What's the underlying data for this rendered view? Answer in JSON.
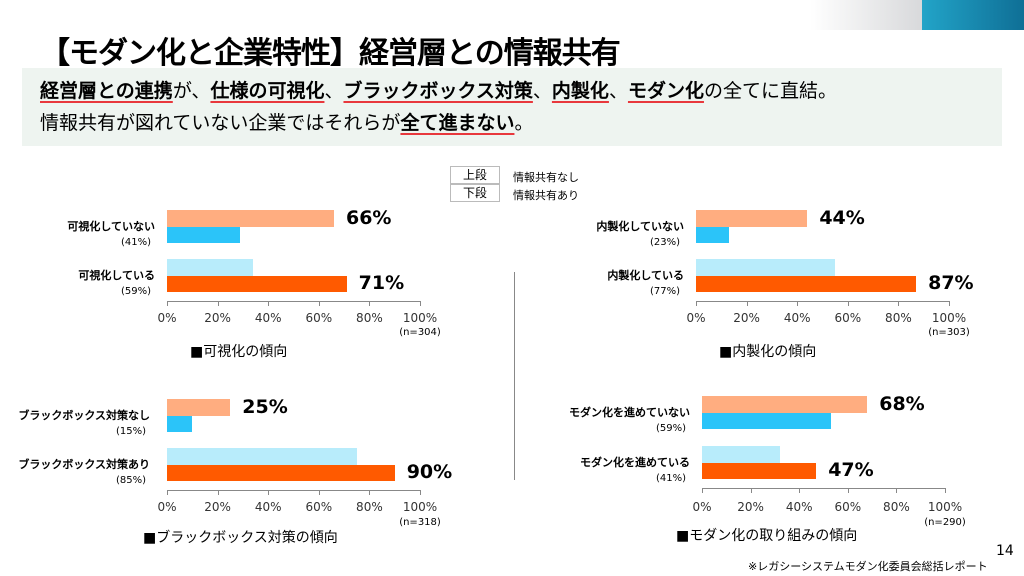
{
  "title": "【モダン化と企業特性】経営層との情報共有",
  "summary": {
    "line1": [
      {
        "t": "経営層との連携",
        "u": true
      },
      {
        "t": "が、",
        "u": false
      },
      {
        "t": "仕様の可視化",
        "u": true
      },
      {
        "t": "、",
        "u": false
      },
      {
        "t": "ブラックボックス対策",
        "u": true
      },
      {
        "t": "、",
        "u": false
      },
      {
        "t": "内製化",
        "u": true
      },
      {
        "t": "、",
        "u": false
      },
      {
        "t": "モダン化",
        "u": true
      },
      {
        "t": "の全てに直結。",
        "u": false
      }
    ],
    "line2": [
      {
        "t": "情報共有が図れていない企業ではそれらが",
        "u": false
      },
      {
        "t": "全て進まない",
        "u": true
      },
      {
        "t": "。",
        "u": false
      }
    ]
  },
  "legend": [
    {
      "key": "上段",
      "label": "情報共有なし"
    },
    {
      "key": "下段",
      "label": "情報共有あり"
    }
  ],
  "colors": {
    "top_highlight": "#ffad80",
    "top_other": "#b8ecfb",
    "bottom_other": "#2bc4f9",
    "bottom_highlight": "#ff5a00"
  },
  "chart_data": [
    {
      "type": "bar",
      "orientation": "horizontal",
      "caption": "■可視化の傾向",
      "n": "(n=304)",
      "xlim": [
        0,
        100
      ],
      "ticks": [
        "0%",
        "20%",
        "40%",
        "60%",
        "80%",
        "100%"
      ],
      "categories": [
        {
          "label": "可視化していない",
          "share": "(41%)"
        },
        {
          "label": "可視化している",
          "share": "(59%)"
        }
      ],
      "series": [
        {
          "name": "情報共有なし",
          "values": [
            66,
            34
          ]
        },
        {
          "name": "情報共有あり",
          "values": [
            29,
            71
          ]
        }
      ],
      "data_labels": [
        "66%",
        "71%"
      ]
    },
    {
      "type": "bar",
      "orientation": "horizontal",
      "caption": "■内製化の傾向",
      "n": "(n=303)",
      "xlim": [
        0,
        100
      ],
      "ticks": [
        "0%",
        "20%",
        "40%",
        "60%",
        "80%",
        "100%"
      ],
      "categories": [
        {
          "label": "内製化していない",
          "share": "(23%)"
        },
        {
          "label": "内製化している",
          "share": "(77%)"
        }
      ],
      "series": [
        {
          "name": "情報共有なし",
          "values": [
            44,
            55
          ]
        },
        {
          "name": "情報共有あり",
          "values": [
            13,
            87
          ]
        }
      ],
      "data_labels": [
        "44%",
        "87%"
      ]
    },
    {
      "type": "bar",
      "orientation": "horizontal",
      "caption": "■ブラックボックス対策の傾向",
      "n": "(n=318)",
      "xlim": [
        0,
        100
      ],
      "ticks": [
        "0%",
        "20%",
        "40%",
        "60%",
        "80%",
        "100%"
      ],
      "categories": [
        {
          "label": "ブラックボックス対策なし",
          "share": "(15%)"
        },
        {
          "label": "ブラックボックス対策あり",
          "share": "(85%)"
        }
      ],
      "series": [
        {
          "name": "情報共有なし",
          "values": [
            25,
            75
          ]
        },
        {
          "name": "情報共有あり",
          "values": [
            10,
            90
          ]
        }
      ],
      "data_labels": [
        "25%",
        "90%"
      ]
    },
    {
      "type": "bar",
      "orientation": "horizontal",
      "caption": "■モダン化の取り組みの傾向",
      "n": "(n=290)",
      "xlim": [
        0,
        100
      ],
      "ticks": [
        "0%",
        "20%",
        "40%",
        "60%",
        "80%",
        "100%"
      ],
      "categories": [
        {
          "label": "モダン化を進めていない",
          "share": "(59%)"
        },
        {
          "label": "モダン化を進めている",
          "share": "(41%)"
        }
      ],
      "series": [
        {
          "name": "情報共有なし",
          "values": [
            68,
            32
          ]
        },
        {
          "name": "情報共有あり",
          "values": [
            53,
            47
          ]
        }
      ],
      "data_labels": [
        "68%",
        "47%"
      ]
    }
  ],
  "page_number": "14",
  "source": "※レガシーシステムモダン化委員会総括レポート"
}
